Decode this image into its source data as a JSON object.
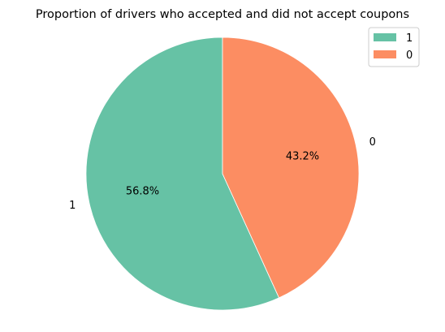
{
  "chart_data": {
    "type": "pie",
    "title": "Proportion of drivers who accepted and did not accept coupons",
    "categories": [
      "1",
      "0"
    ],
    "values": [
      56.8,
      43.2
    ],
    "percent_labels": [
      "56.8%",
      "43.2%"
    ],
    "colors": [
      "#66c2a5",
      "#fc8d62"
    ],
    "start_angle_deg": 90,
    "direction": "counterclockwise",
    "legend": {
      "placement": "top-right",
      "entries": [
        "1",
        "0"
      ]
    }
  }
}
